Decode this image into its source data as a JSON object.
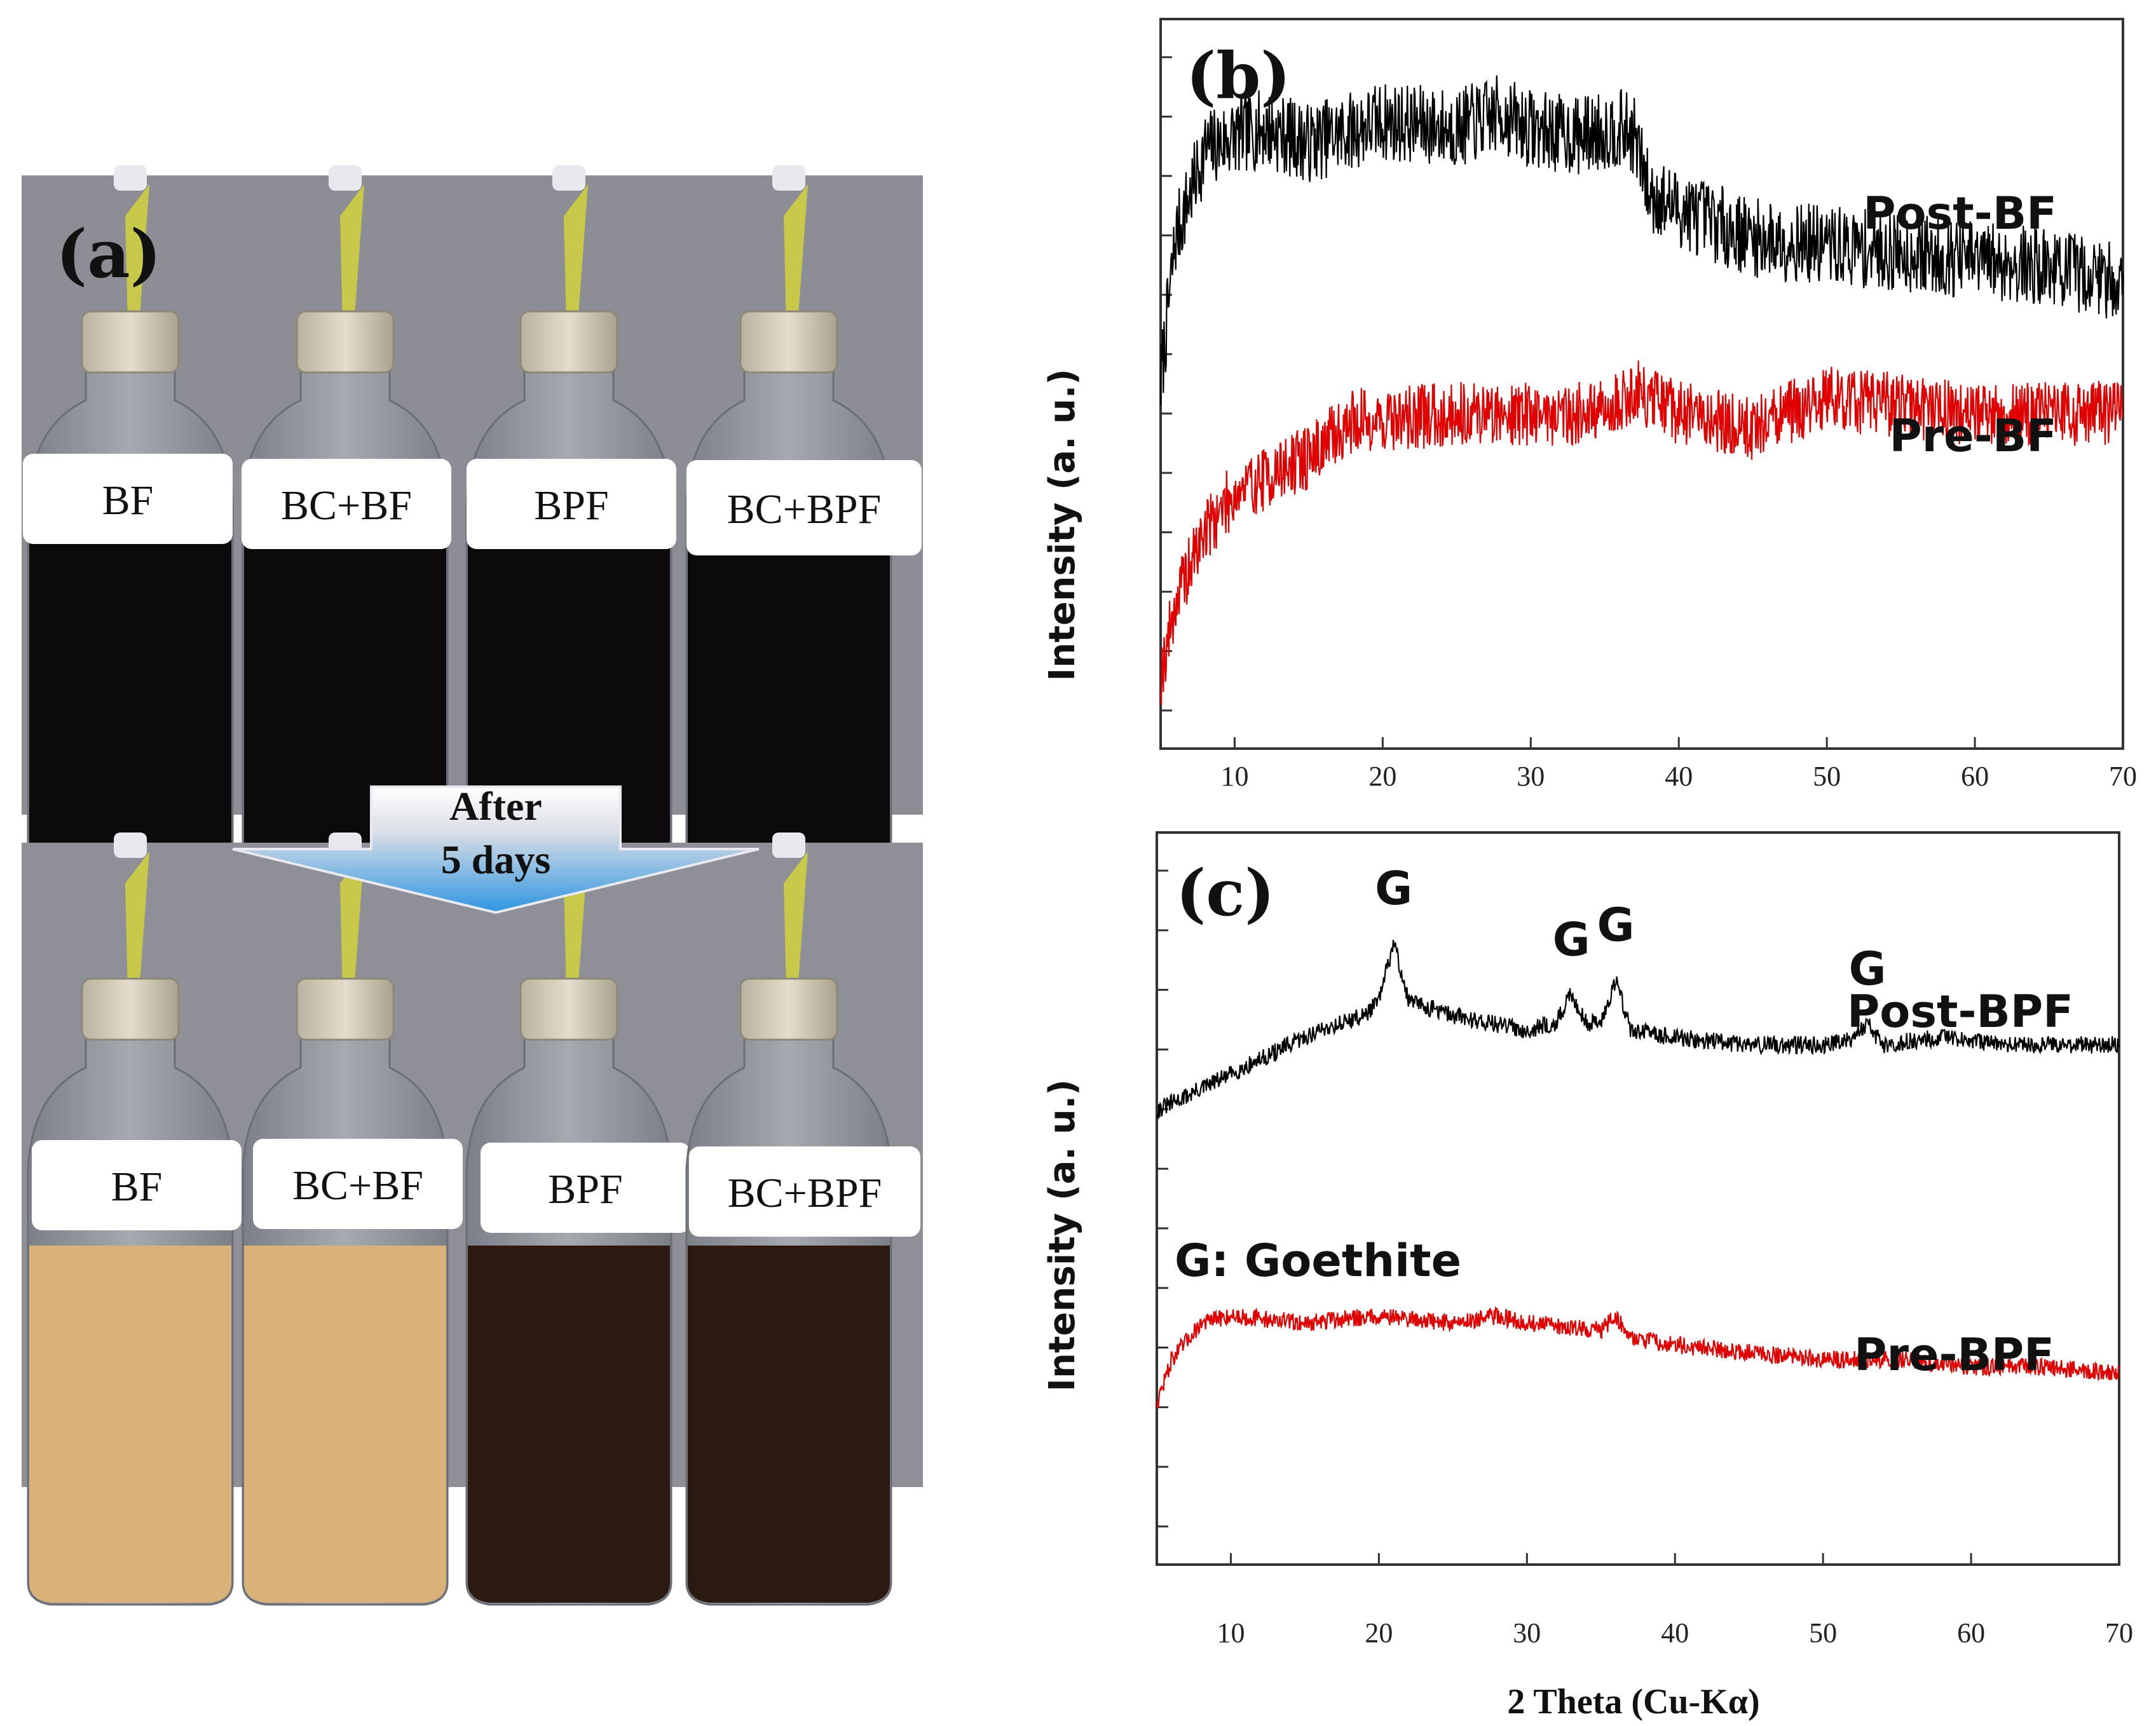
{
  "figure": {
    "panel_a": {
      "label": "(a)",
      "top_bottles": [
        "BF",
        "BC+BF",
        "BPF",
        "BC+BPF"
      ],
      "bottom_bottles": [
        "BF",
        "BC+BF",
        "BPF",
        "BC+BPF"
      ],
      "arrow_line1": "After",
      "arrow_line2": "5 days",
      "colors": {
        "dark_liquid": "#0c0a0a",
        "yellow_liquid": "#d9b27a",
        "brown_liquid": "#2a1a12",
        "background": "#8f9097",
        "arrow": "#5aaee8"
      }
    }
  },
  "chart_data": [
    {
      "type": "line",
      "panel": "(b)",
      "xlabel": "",
      "ylabel": "Intensity (a. u.)",
      "xlim": [
        5,
        70
      ],
      "x_ticks": [
        "10",
        "20",
        "30",
        "40",
        "50",
        "60",
        "70"
      ],
      "series": [
        {
          "name": "Post-BF",
          "color": "#000000",
          "x": [
            5,
            6,
            8,
            10,
            12,
            15,
            20,
            25,
            28,
            30,
            33,
            36,
            37,
            38,
            40,
            45,
            50,
            55,
            60,
            65,
            70
          ],
          "y": [
            5.0,
            7.0,
            8.2,
            8.4,
            8.5,
            8.3,
            8.6,
            8.5,
            8.7,
            8.5,
            8.4,
            8.5,
            8.4,
            7.6,
            7.4,
            7.0,
            6.9,
            6.8,
            6.7,
            6.6,
            6.4
          ]
        },
        {
          "name": "Pre-BF",
          "color": "#e00000",
          "x": [
            5,
            6,
            8,
            10,
            12,
            15,
            18,
            20,
            25,
            30,
            35,
            37,
            40,
            45,
            50,
            55,
            60,
            65,
            70
          ],
          "y": [
            1.0,
            2.0,
            3.0,
            3.5,
            3.7,
            4.0,
            4.5,
            4.5,
            4.6,
            4.6,
            4.6,
            4.9,
            4.6,
            4.4,
            4.8,
            4.7,
            4.6,
            4.6,
            4.6
          ]
        }
      ]
    },
    {
      "type": "line",
      "panel": "(c)",
      "xlabel": "2 Theta (Cu-Kα)",
      "ylabel": "Intensity (a. u.)",
      "xlim": [
        5,
        70
      ],
      "x_ticks": [
        "10",
        "20",
        "30",
        "40",
        "50",
        "60",
        "70"
      ],
      "legend_note": "G: Goethite",
      "annotations": [
        {
          "text": "G",
          "x": 21
        },
        {
          "text": "G",
          "x": 33
        },
        {
          "text": "G",
          "x": 36
        },
        {
          "text": "G",
          "x": 53
        }
      ],
      "series": [
        {
          "name": "Post-BPF",
          "color": "#000000",
          "x": [
            5,
            8,
            12,
            16,
            19,
            20,
            21,
            22,
            25,
            30,
            32,
            33,
            34,
            35,
            36,
            37,
            40,
            45,
            50,
            52,
            53,
            54,
            58,
            62,
            66,
            70
          ],
          "y": [
            6.2,
            6.5,
            6.9,
            7.3,
            7.5,
            7.7,
            8.5,
            7.7,
            7.5,
            7.3,
            7.4,
            7.8,
            7.4,
            7.4,
            8.0,
            7.3,
            7.2,
            7.1,
            7.1,
            7.2,
            7.4,
            7.1,
            7.2,
            7.1,
            7.1,
            7.1
          ]
        },
        {
          "name": "Pre-BPF",
          "color": "#e00000",
          "x": [
            5,
            6,
            8,
            10,
            15,
            20,
            25,
            28,
            30,
            35,
            36,
            37,
            40,
            45,
            50,
            55,
            60,
            65,
            70
          ],
          "y": [
            2.2,
            2.8,
            3.3,
            3.4,
            3.3,
            3.4,
            3.3,
            3.4,
            3.3,
            3.2,
            3.4,
            3.1,
            3.0,
            2.9,
            2.8,
            2.8,
            2.7,
            2.7,
            2.6
          ]
        }
      ]
    }
  ]
}
